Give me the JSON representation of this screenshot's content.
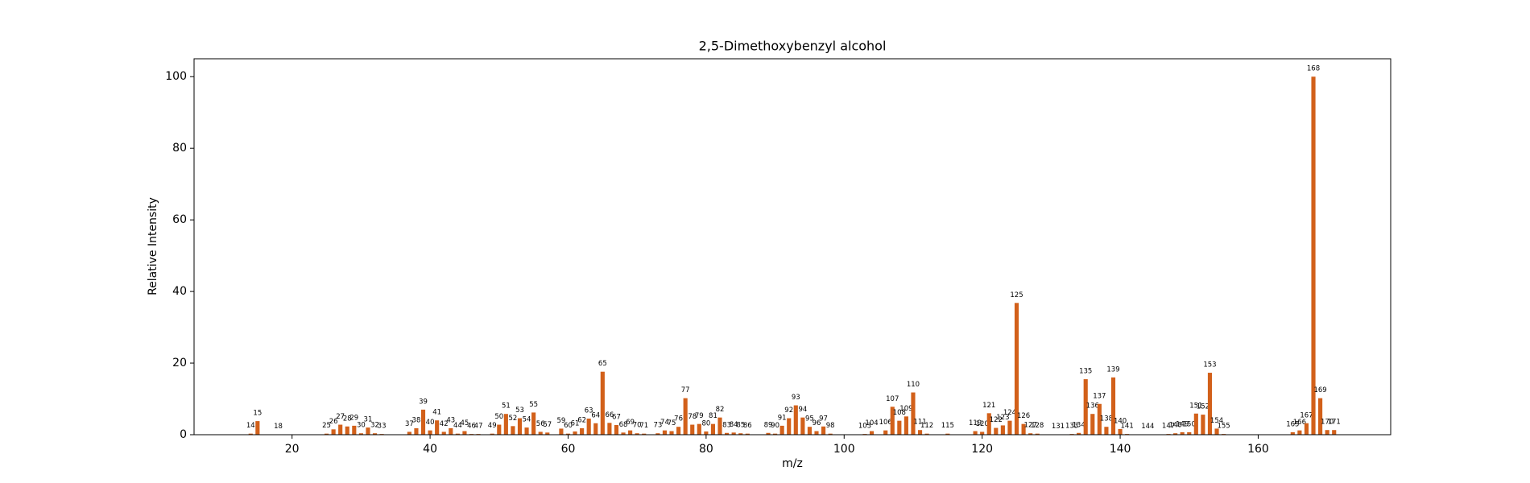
{
  "chart_data": {
    "type": "bar",
    "title": "2,5-Dimethoxybenzyl alcohol",
    "x_label": "m/z",
    "y_label": "Relative Intensity",
    "color": "#d2601a",
    "x": [
      14,
      15,
      18,
      25,
      26,
      27,
      28,
      29,
      30,
      31,
      32,
      33,
      37,
      38,
      39,
      40,
      41,
      42,
      43,
      44,
      45,
      46,
      47,
      49,
      50,
      51,
      52,
      53,
      54,
      55,
      56,
      57,
      59,
      60,
      61,
      62,
      63,
      64,
      65,
      66,
      67,
      68,
      69,
      70,
      71,
      73,
      74,
      75,
      76,
      77,
      78,
      79,
      80,
      81,
      82,
      83,
      84,
      85,
      86,
      89,
      90,
      91,
      92,
      93,
      94,
      95,
      96,
      97,
      98,
      103,
      104,
      106,
      107,
      108,
      109,
      110,
      111,
      112,
      115,
      119,
      120,
      121,
      122,
      123,
      124,
      125,
      126,
      127,
      128,
      131,
      133,
      134,
      135,
      136,
      137,
      138,
      139,
      140,
      141,
      144,
      147,
      148,
      149,
      150,
      151,
      152,
      153,
      154,
      155,
      165,
      166,
      167,
      168,
      169,
      170,
      171
    ],
    "values": [
      0.3,
      3.8,
      0.1,
      0.3,
      1.5,
      2.8,
      2.3,
      2.5,
      0.4,
      2.0,
      0.4,
      0.2,
      0.8,
      1.8,
      7.0,
      1.2,
      4.0,
      0.8,
      1.8,
      0.3,
      1.0,
      0.2,
      0.2,
      0.3,
      2.8,
      5.8,
      2.4,
      4.6,
      2.0,
      6.2,
      0.8,
      0.6,
      1.7,
      0.3,
      0.9,
      1.8,
      4.5,
      3.2,
      17.6,
      3.3,
      2.7,
      0.6,
      1.2,
      0.4,
      0.3,
      0.4,
      1.2,
      1.0,
      2.2,
      10.2,
      2.8,
      3.0,
      0.9,
      3.0,
      4.8,
      0.5,
      0.6,
      0.4,
      0.3,
      0.5,
      0.3,
      2.5,
      4.6,
      8.2,
      4.8,
      2.2,
      1.0,
      2.3,
      0.3,
      0.2,
      1.0,
      1.2,
      7.8,
      3.9,
      5.1,
      11.8,
      1.3,
      0.3,
      0.3,
      1.0,
      0.8,
      6.0,
      1.9,
      2.6,
      3.9,
      36.8,
      3.0,
      0.4,
      0.3,
      0.1,
      0.2,
      0.5,
      15.5,
      5.8,
      8.6,
      2.2,
      16.0,
      1.6,
      0.2,
      0.1,
      0.2,
      0.4,
      0.7,
      0.7,
      5.9,
      5.6,
      17.3,
      1.7,
      0.2,
      0.7,
      1.2,
      3.2,
      100,
      10.2,
      1.3,
      1.3
    ],
    "xlim": [
      5.8,
      179.2
    ],
    "ylim": [
      0,
      105
    ],
    "xticks": [
      20,
      40,
      60,
      80,
      100,
      120,
      140,
      160
    ],
    "yticks": [
      0,
      20,
      40,
      60,
      80,
      100
    ]
  }
}
